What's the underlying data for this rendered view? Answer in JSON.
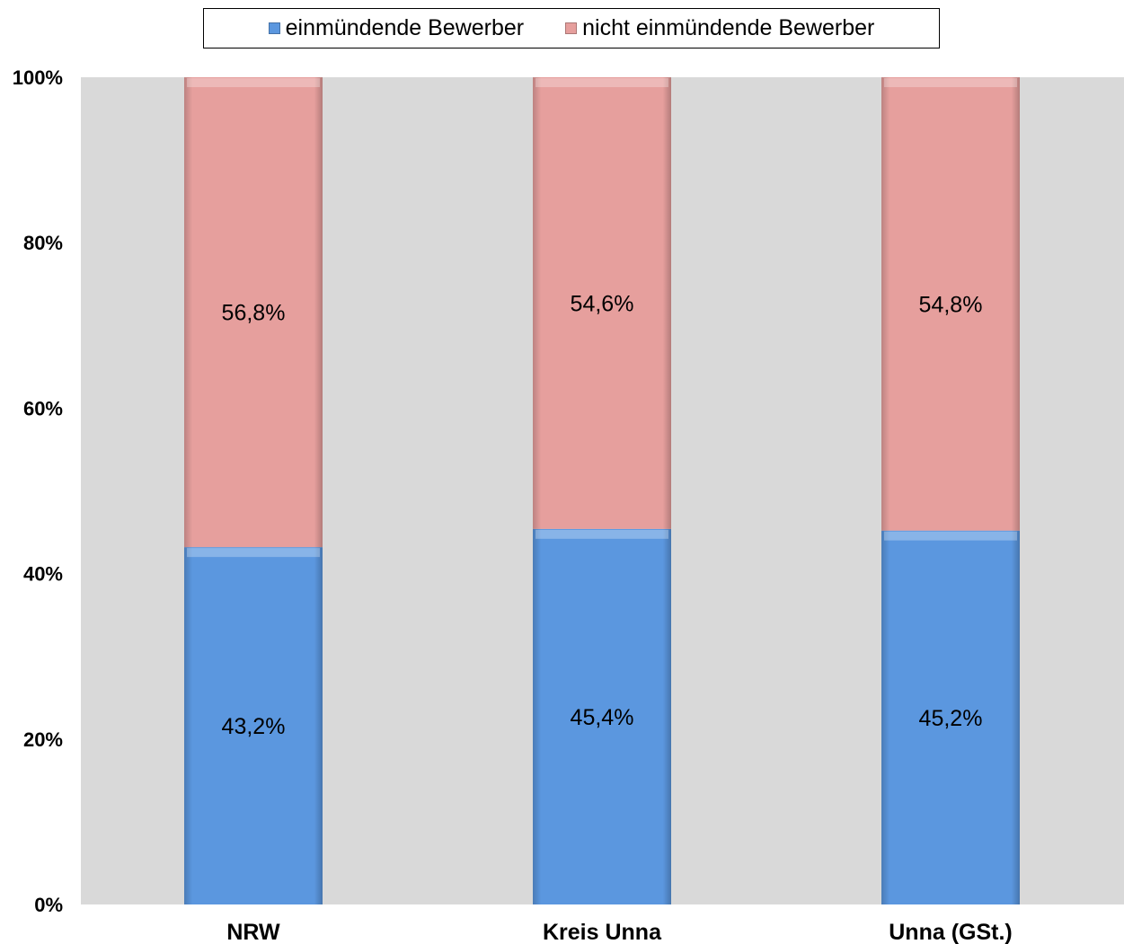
{
  "chart_data": {
    "type": "bar",
    "stacked": true,
    "categories": [
      "NRW",
      "Kreis Unna",
      "Unna (GSt.)"
    ],
    "series": [
      {
        "name": "einmündende Bewerber",
        "values": [
          43.2,
          45.4,
          45.2
        ],
        "labels": [
          "43,2%",
          "45,4%",
          "45,2%"
        ],
        "color": "#5b97df"
      },
      {
        "name": "nicht einmündende Bewerber",
        "values": [
          56.8,
          54.6,
          54.8
        ],
        "labels": [
          "56,8%",
          "54,6%",
          "54,8%"
        ],
        "color": "#e69f9d"
      }
    ],
    "ylim": [
      0,
      100
    ],
    "yticks": [
      "0%",
      "20%",
      "40%",
      "60%",
      "80%",
      "100%"
    ],
    "legend_position": "top",
    "plot_background": "#d9d9d9",
    "grid": false
  }
}
